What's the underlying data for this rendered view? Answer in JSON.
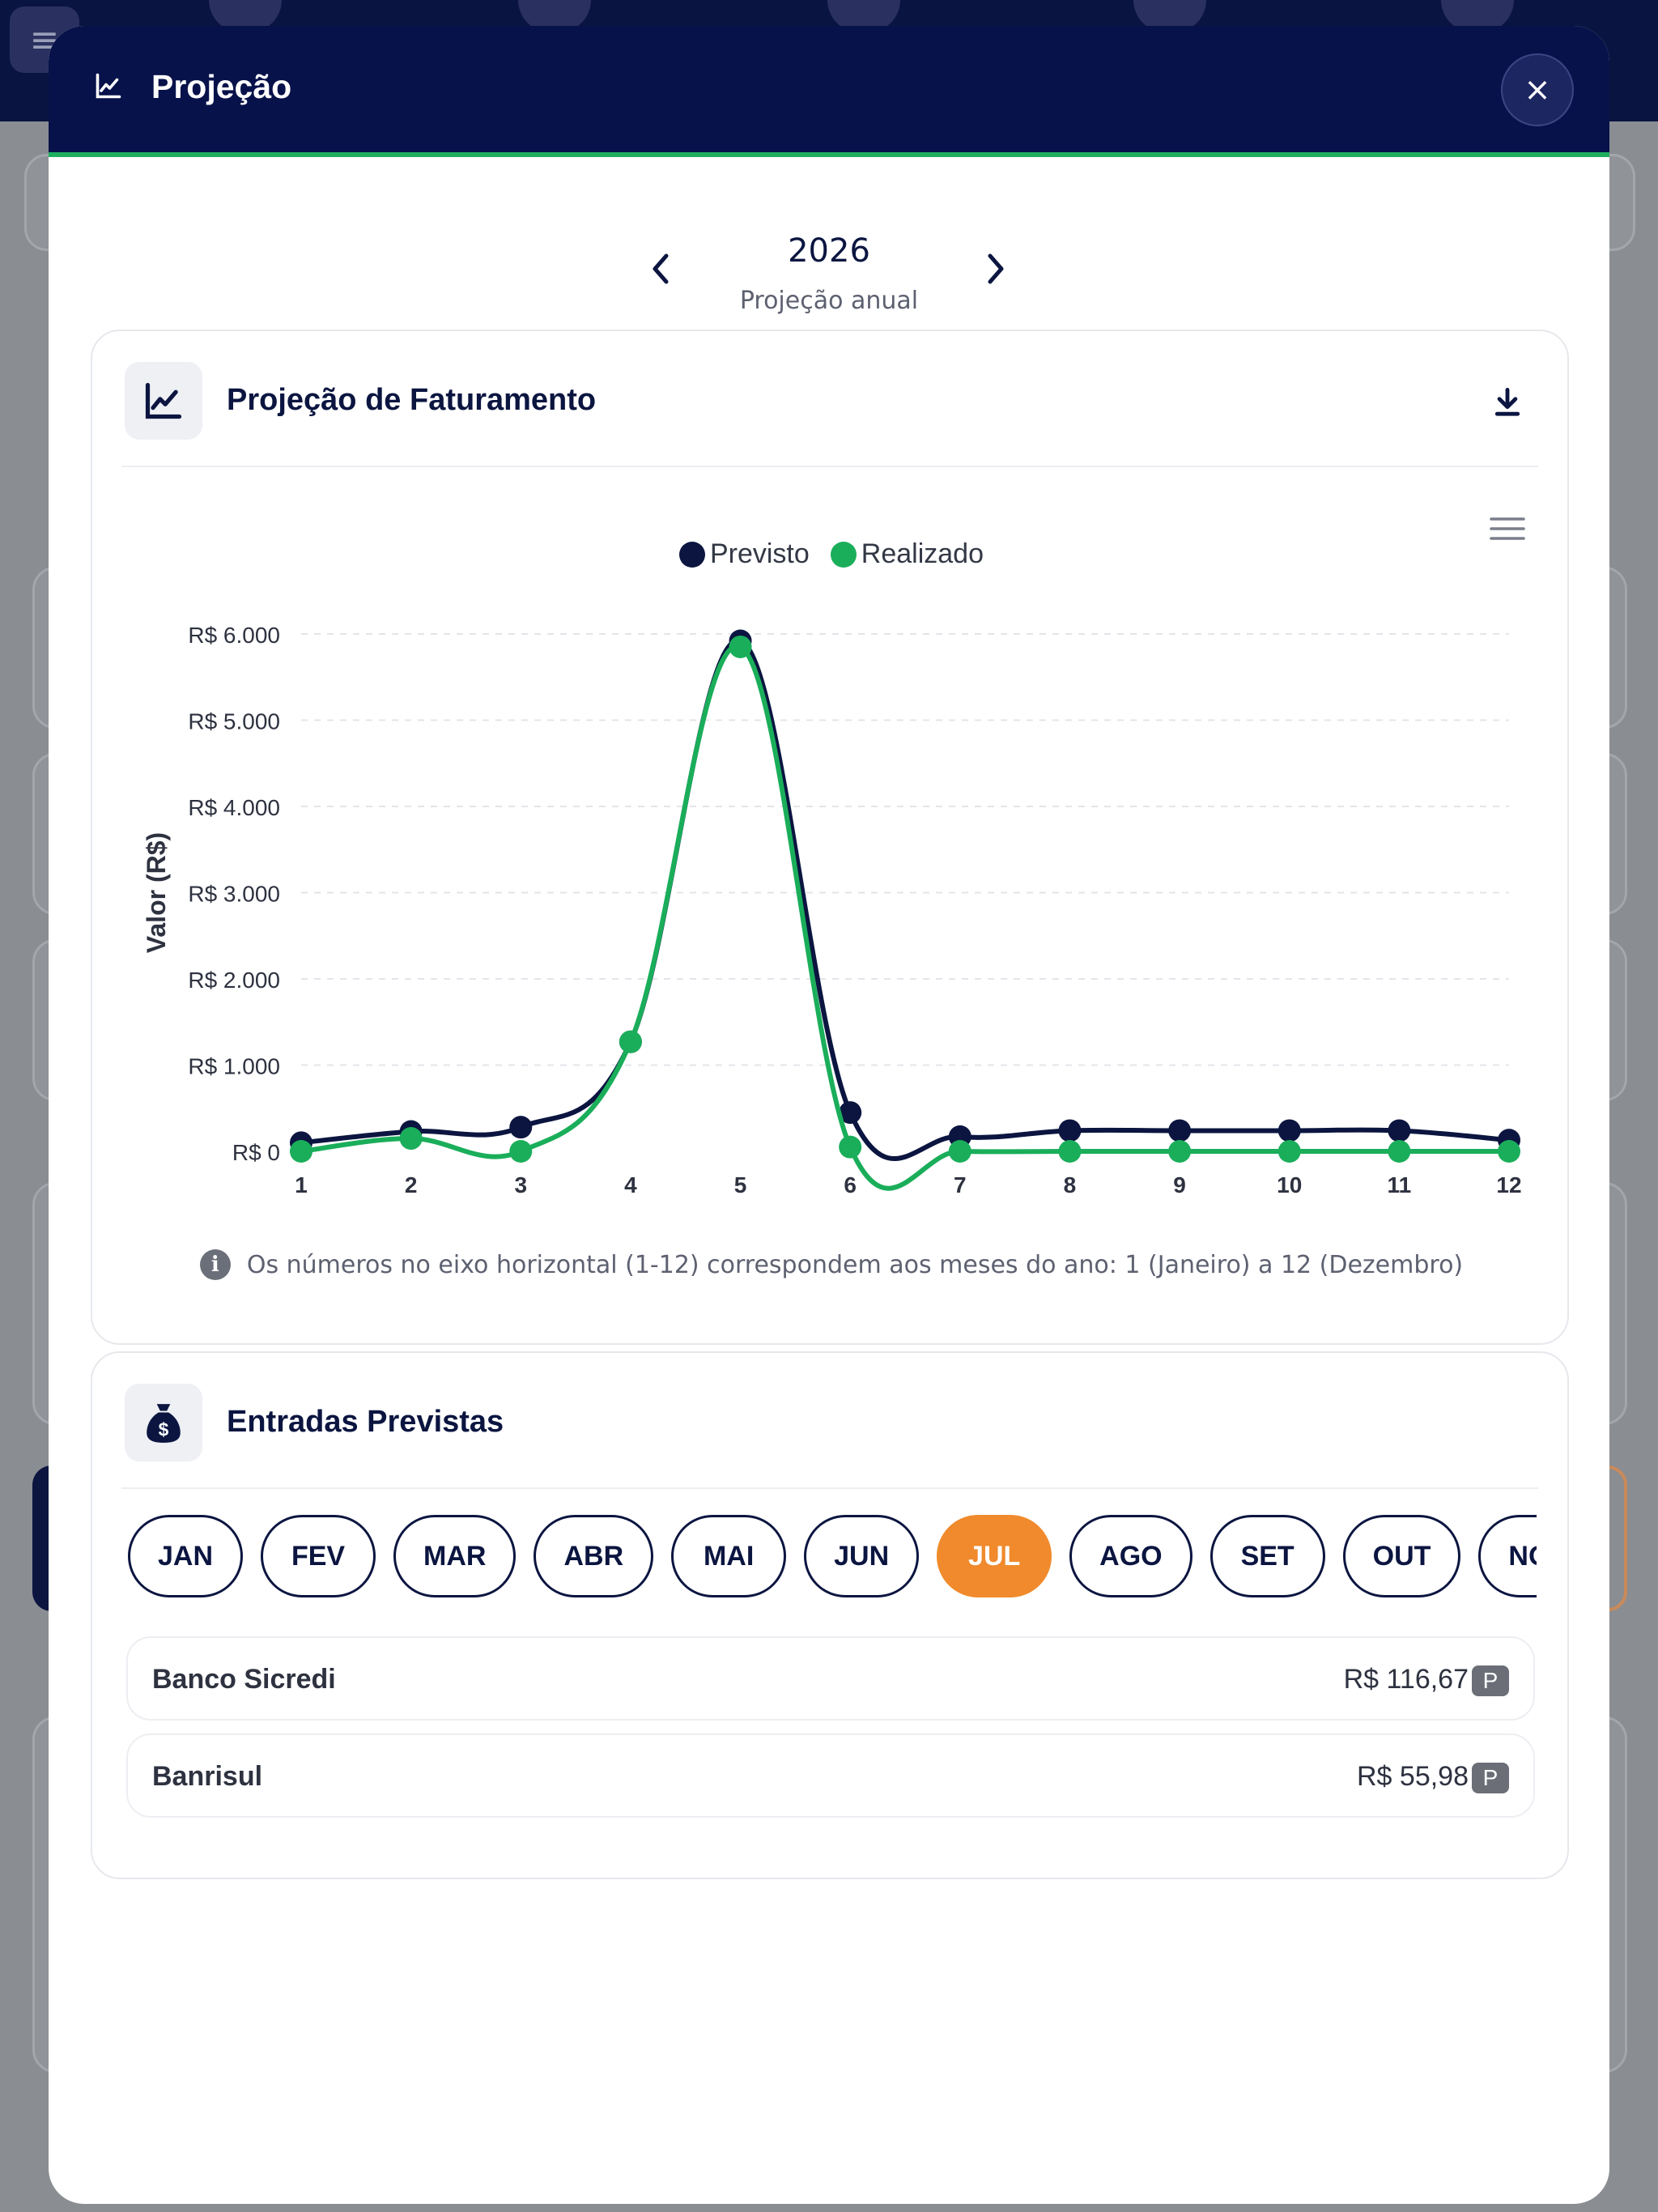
{
  "modal": {
    "title": "Projeção",
    "close_label": "×"
  },
  "year_nav": {
    "year": "2026",
    "subtitle": "Projeção anual"
  },
  "chart_card": {
    "title": "Projeção de Faturamento",
    "icon": "line-chart-icon",
    "info_note": "Os números no eixo horizontal (1-12) correspondem aos meses do ano: 1 (Janeiro) a 12 (Dezembro)"
  },
  "chart_data": {
    "type": "line",
    "x": [
      1,
      2,
      3,
      4,
      5,
      6,
      7,
      8,
      9,
      10,
      11,
      12
    ],
    "xtick_labels": [
      "1",
      "2",
      "3",
      "4",
      "5",
      "6",
      "7",
      "8",
      "9",
      "10",
      "11",
      "12"
    ],
    "ylabel": "Valor (R$)",
    "ylim": [
      0,
      6000
    ],
    "ytick_values": [
      0,
      1000,
      2000,
      3000,
      4000,
      5000,
      6000
    ],
    "ytick_labels": [
      "R$ 0",
      "R$ 1.000",
      "R$ 2.000",
      "R$ 3.000",
      "R$ 4.000",
      "R$ 5.000",
      "R$ 6.000"
    ],
    "legend_position": "top-center",
    "grid": true,
    "series": [
      {
        "name": "Previsto",
        "color": "#0b1540",
        "values": [
          100,
          230,
          280,
          1270,
          5920,
          450,
          170,
          240,
          240,
          240,
          240,
          130
        ]
      },
      {
        "name": "Realizado",
        "color": "#1aae5a",
        "values": [
          0,
          150,
          0,
          1270,
          5850,
          50,
          0,
          0,
          0,
          0,
          0,
          0
        ]
      }
    ]
  },
  "entradas_card": {
    "title": "Entradas Previstas",
    "icon": "money-bag-icon",
    "months": [
      "JAN",
      "FEV",
      "MAR",
      "ABR",
      "MAI",
      "JUN",
      "JUL",
      "AGO",
      "SET",
      "OUT",
      "NOV"
    ],
    "active_month": "JUL",
    "entries": [
      {
        "name": "Banco Sicredi",
        "amount": "R$ 116,67",
        "badge": "P"
      },
      {
        "name": "Banrisul",
        "amount": "R$ 55,98",
        "badge": "P"
      }
    ]
  }
}
